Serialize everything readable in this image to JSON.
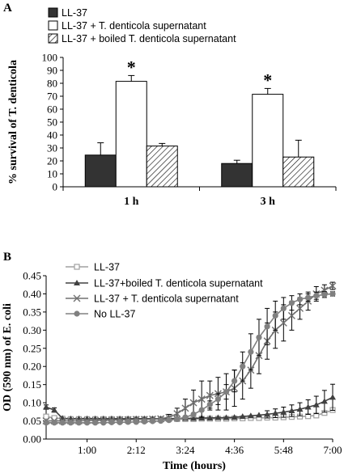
{
  "chart_data": [
    {
      "panel": "A",
      "type": "bar",
      "ylabel": "% survival of T. denticola",
      "ylim": [
        0,
        100
      ],
      "yticks": [
        0,
        10,
        20,
        30,
        40,
        50,
        60,
        70,
        80,
        90,
        100
      ],
      "categories": [
        "1 h",
        "3 h"
      ],
      "series": [
        {
          "name": "LL-37",
          "values": [
            24.5,
            18
          ],
          "errors": [
            9.5,
            2.5
          ],
          "style": "dark"
        },
        {
          "name": "LL-37 + T. denticola supernatant",
          "values": [
            81.5,
            71.5
          ],
          "errors": [
            4.5,
            4.5
          ],
          "style": "white"
        },
        {
          "name": "LL-37 + boiled T. denticola supernatant",
          "values": [
            31.5,
            23
          ],
          "errors": [
            2,
            13
          ],
          "style": "hatch"
        }
      ],
      "significance": [
        {
          "category": "1 h",
          "series": 1,
          "label": "*"
        },
        {
          "category": "3 h",
          "series": 1,
          "label": "*"
        }
      ],
      "grid": false,
      "legend": "top-left"
    },
    {
      "panel": "B",
      "type": "line",
      "xlabel": "Time (hours)",
      "ylabel": "OD (590 nm) of E. coli",
      "xlim": [
        0,
        420
      ],
      "ylim": [
        0,
        0.45
      ],
      "xticks": [
        60,
        132,
        204,
        276,
        348,
        420
      ],
      "xtick_labels": [
        "1:00",
        "2:12",
        "3:24",
        "4:36",
        "5:48",
        "7:00"
      ],
      "yticks": [
        0,
        0.05,
        0.1,
        0.15,
        0.2,
        0.25,
        0.3,
        0.35,
        0.4,
        0.45
      ],
      "ytick_labels": [
        "0.00",
        "0.05",
        "0.10",
        "0.15",
        "0.20",
        "0.25",
        "0.30",
        "0.35",
        "0.40",
        "0.45"
      ],
      "x": [
        0,
        12,
        24,
        36,
        48,
        60,
        72,
        84,
        96,
        108,
        120,
        132,
        144,
        156,
        168,
        180,
        192,
        204,
        216,
        228,
        240,
        252,
        264,
        276,
        288,
        300,
        312,
        324,
        336,
        348,
        360,
        372,
        384,
        396,
        408,
        420
      ],
      "series": [
        {
          "name": "LL-37",
          "marker": "square-open",
          "color": "#a0a0a0",
          "values": [
            0.062,
            0.058,
            0.056,
            0.055,
            0.055,
            0.055,
            0.055,
            0.055,
            0.055,
            0.055,
            0.055,
            0.055,
            0.055,
            0.055,
            0.055,
            0.055,
            0.055,
            0.055,
            0.055,
            0.056,
            0.056,
            0.056,
            0.056,
            0.057,
            0.057,
            0.058,
            0.058,
            0.059,
            0.059,
            0.06,
            0.061,
            0.062,
            0.063,
            0.065,
            0.072,
            0.08
          ],
          "errors": []
        },
        {
          "name": "LL-37+boiled T. denticola supernatant",
          "marker": "triangle",
          "color": "#404040",
          "values": [
            0.088,
            0.08,
            0.057,
            0.056,
            0.056,
            0.056,
            0.056,
            0.056,
            0.056,
            0.056,
            0.056,
            0.056,
            0.056,
            0.056,
            0.056,
            0.056,
            0.057,
            0.057,
            0.057,
            0.058,
            0.058,
            0.059,
            0.059,
            0.06,
            0.062,
            0.064,
            0.066,
            0.068,
            0.071,
            0.074,
            0.078,
            0.082,
            0.088,
            0.094,
            0.104,
            0.115
          ],
          "errors": [
            0.006,
            0.006,
            0,
            0,
            0,
            0,
            0,
            0,
            0,
            0,
            0,
            0,
            0,
            0,
            0,
            0,
            0,
            0,
            0,
            0,
            0,
            0,
            0,
            0,
            0,
            0,
            0,
            0.01,
            0.012,
            0.014,
            0.016,
            0.018,
            0.02,
            0.024,
            0.03,
            0.036
          ]
        },
        {
          "name": "LL-37 + T. denticola supernatant",
          "marker": "cross",
          "color": "#707070",
          "values": [
            0.05,
            0.05,
            0.05,
            0.05,
            0.05,
            0.051,
            0.051,
            0.052,
            0.052,
            0.053,
            0.053,
            0.054,
            0.054,
            0.055,
            0.056,
            0.06,
            0.07,
            0.085,
            0.1,
            0.11,
            0.12,
            0.125,
            0.13,
            0.14,
            0.16,
            0.19,
            0.23,
            0.27,
            0.3,
            0.32,
            0.34,
            0.36,
            0.38,
            0.4,
            0.41,
            0.422
          ],
          "errors": [
            0,
            0,
            0,
            0,
            0,
            0,
            0,
            0,
            0,
            0,
            0,
            0,
            0,
            0,
            0,
            0.008,
            0.015,
            0.025,
            0.035,
            0.05,
            0.04,
            0.045,
            0.05,
            0.05,
            0.05,
            0.05,
            0.05,
            0.05,
            0.05,
            0.05,
            0.04,
            0.03,
            0.025,
            0.02,
            0.015,
            0.01
          ]
        },
        {
          "name": "No LL-37",
          "marker": "circle",
          "color": "#808080",
          "values": [
            0.045,
            0.045,
            0.045,
            0.045,
            0.045,
            0.045,
            0.045,
            0.045,
            0.046,
            0.046,
            0.047,
            0.047,
            0.048,
            0.049,
            0.05,
            0.052,
            0.055,
            0.06,
            0.068,
            0.08,
            0.095,
            0.11,
            0.13,
            0.16,
            0.2,
            0.24,
            0.28,
            0.31,
            0.34,
            0.36,
            0.375,
            0.385,
            0.39,
            0.395,
            0.398,
            0.4
          ],
          "errors": [
            0,
            0,
            0,
            0,
            0,
            0,
            0,
            0,
            0,
            0,
            0,
            0,
            0,
            0,
            0,
            0,
            0,
            0,
            0,
            0,
            0.01,
            0.015,
            0.02,
            0.03,
            0.04,
            0.05,
            0.05,
            0.05,
            0.04,
            0.03,
            0.02,
            0.015,
            0.01,
            0.01,
            0.008,
            0.006
          ]
        }
      ],
      "grid": false,
      "legend": "top-left"
    }
  ]
}
